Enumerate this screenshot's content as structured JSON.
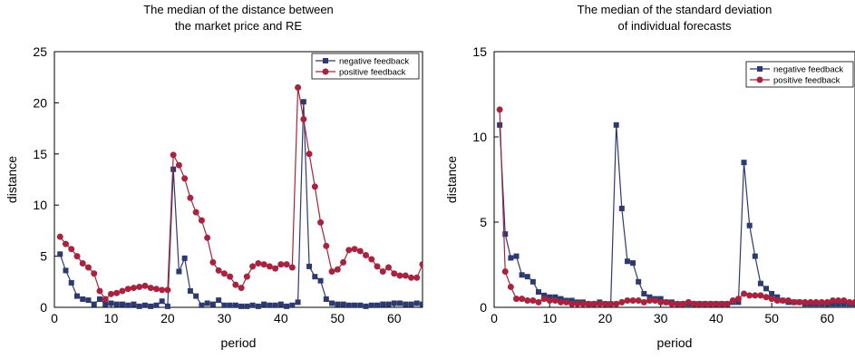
{
  "chart_data": [
    {
      "type": "line",
      "title_lines": [
        "The median of the distance between",
        "the market price and RE"
      ],
      "xlabel": "period",
      "ylabel": "distance",
      "xlim": [
        0,
        65
      ],
      "ylim": [
        0,
        25
      ],
      "xticks": [
        0,
        10,
        20,
        30,
        40,
        50,
        60
      ],
      "yticks": [
        0,
        5,
        10,
        15,
        20,
        25
      ],
      "grid": false,
      "legend_position": "top-right",
      "x": [
        1,
        2,
        3,
        4,
        5,
        6,
        7,
        8,
        9,
        10,
        11,
        12,
        13,
        14,
        15,
        16,
        17,
        18,
        19,
        20,
        21,
        22,
        23,
        24,
        25,
        26,
        27,
        28,
        29,
        30,
        31,
        32,
        33,
        34,
        35,
        36,
        37,
        38,
        39,
        40,
        41,
        42,
        43,
        44,
        45,
        46,
        47,
        48,
        49,
        50,
        51,
        52,
        53,
        54,
        55,
        56,
        57,
        58,
        59,
        60,
        61,
        62,
        63,
        64,
        65
      ],
      "series": [
        {
          "name": "negative feedback",
          "color": "#2e3a6e",
          "marker": "square",
          "values": [
            5.2,
            3.6,
            2.4,
            1.1,
            0.8,
            0.7,
            0.3,
            0.8,
            0.3,
            0.4,
            0.3,
            0.3,
            0.2,
            0.3,
            0.1,
            0.2,
            0.1,
            0.2,
            0.6,
            0.1,
            13.5,
            3.5,
            4.8,
            1.6,
            1.1,
            0.2,
            0.4,
            0.3,
            0.7,
            0.2,
            0.2,
            0.2,
            0.1,
            0.1,
            0.2,
            0.1,
            0.3,
            0.2,
            0.2,
            0.3,
            0.1,
            0.2,
            0.5,
            20.1,
            4.0,
            3.0,
            2.6,
            0.8,
            0.4,
            0.3,
            0.3,
            0.2,
            0.2,
            0.2,
            0.1,
            0.2,
            0.2,
            0.3,
            0.3,
            0.4,
            0.4,
            0.3,
            0.3,
            0.4,
            0.3
          ]
        },
        {
          "name": "positive feedback",
          "color": "#a8233f",
          "marker": "circle",
          "values": [
            6.9,
            6.2,
            5.7,
            5.0,
            4.3,
            3.9,
            3.3,
            1.6,
            0.8,
            1.3,
            1.4,
            1.6,
            1.8,
            1.9,
            2.0,
            2.1,
            1.9,
            1.8,
            1.7,
            1.7,
            14.9,
            13.9,
            12.6,
            10.7,
            9.3,
            8.5,
            6.8,
            4.4,
            3.6,
            3.3,
            3.0,
            2.2,
            1.9,
            3.0,
            4.0,
            4.3,
            4.2,
            4.0,
            3.8,
            4.2,
            4.2,
            3.9,
            21.5,
            18.4,
            15.0,
            11.8,
            8.3,
            6.0,
            3.5,
            3.7,
            4.4,
            5.6,
            5.7,
            5.5,
            5.1,
            4.7,
            4.0,
            3.5,
            3.9,
            3.3,
            3.1,
            3.1,
            2.9,
            2.9,
            4.2
          ]
        }
      ]
    },
    {
      "type": "line",
      "title_lines": [
        "The median of the standard deviation",
        "of individual forecasts"
      ],
      "xlabel": "period",
      "ylabel": "distance",
      "xlim": [
        0,
        65
      ],
      "ylim": [
        0,
        15
      ],
      "xticks": [
        0,
        10,
        20,
        30,
        40,
        50,
        60
      ],
      "yticks": [
        0,
        5,
        10,
        15
      ],
      "grid": false,
      "legend_position": "top-right",
      "x": [
        1,
        2,
        3,
        4,
        5,
        6,
        7,
        8,
        9,
        10,
        11,
        12,
        13,
        14,
        15,
        16,
        17,
        18,
        19,
        20,
        21,
        22,
        23,
        24,
        25,
        26,
        27,
        28,
        29,
        30,
        31,
        32,
        33,
        34,
        35,
        36,
        37,
        38,
        39,
        40,
        41,
        42,
        43,
        44,
        45,
        46,
        47,
        48,
        49,
        50,
        51,
        52,
        53,
        54,
        55,
        56,
        57,
        58,
        59,
        60,
        61,
        62,
        63,
        64,
        65
      ],
      "series": [
        {
          "name": "negative feedback",
          "color": "#2e3a6e",
          "marker": "square",
          "values": [
            10.7,
            4.3,
            2.9,
            3.0,
            1.9,
            1.8,
            1.5,
            0.9,
            0.7,
            0.6,
            0.6,
            0.5,
            0.4,
            0.4,
            0.3,
            0.3,
            0.2,
            0.2,
            0.3,
            0.2,
            0.2,
            10.7,
            5.8,
            2.7,
            2.6,
            1.5,
            0.8,
            0.6,
            0.5,
            0.5,
            0.3,
            0.3,
            0.2,
            0.2,
            0.2,
            0.2,
            0.2,
            0.2,
            0.2,
            0.2,
            0.2,
            0.2,
            0.3,
            0.3,
            8.5,
            4.8,
            3.0,
            1.4,
            1.1,
            0.8,
            0.6,
            0.4,
            0.3,
            0.3,
            0.3,
            0.2,
            0.2,
            0.2,
            0.2,
            0.2,
            0.2,
            0.2,
            0.2,
            0.2,
            0.2
          ]
        },
        {
          "name": "positive feedback",
          "color": "#a8233f",
          "marker": "circle",
          "values": [
            11.6,
            2.1,
            1.2,
            0.5,
            0.5,
            0.4,
            0.4,
            0.3,
            0.5,
            0.4,
            0.4,
            0.3,
            0.3,
            0.2,
            0.2,
            0.2,
            0.2,
            0.2,
            0.2,
            0.2,
            0.2,
            0.2,
            0.3,
            0.4,
            0.4,
            0.4,
            0.3,
            0.4,
            0.4,
            0.3,
            0.3,
            0.2,
            0.2,
            0.2,
            0.3,
            0.2,
            0.2,
            0.2,
            0.2,
            0.2,
            0.2,
            0.2,
            0.4,
            0.5,
            0.8,
            0.7,
            0.7,
            0.7,
            0.6,
            0.5,
            0.4,
            0.4,
            0.4,
            0.3,
            0.3,
            0.3,
            0.3,
            0.3,
            0.3,
            0.3,
            0.4,
            0.4,
            0.4,
            0.3,
            0.3
          ]
        }
      ]
    }
  ]
}
